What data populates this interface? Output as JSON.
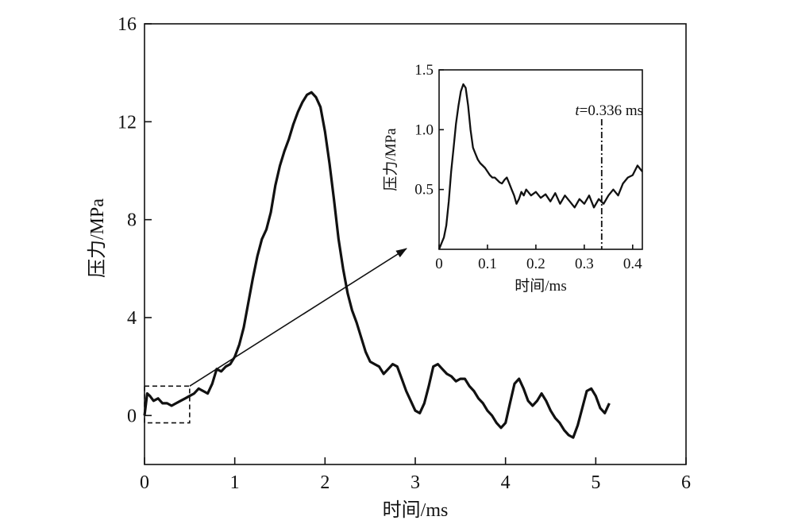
{
  "chart_data": [
    {
      "type": "line",
      "xlabel": "时间/ms",
      "ylabel": "压力/MPa",
      "xlim": [
        0,
        6
      ],
      "ylim": [
        -2,
        16
      ],
      "xticks": [
        "0",
        "1",
        "2",
        "3",
        "4",
        "5",
        "6"
      ],
      "yticks": [
        "0",
        "4",
        "8",
        "12",
        "16"
      ],
      "grid": false,
      "zoom_box": {
        "x": [
          0,
          0.5
        ],
        "y": [
          -0.3,
          1.2
        ]
      },
      "series": [
        {
          "x": [
            0,
            0.03,
            0.06,
            0.1,
            0.15,
            0.2,
            0.25,
            0.3,
            0.35,
            0.4,
            0.45,
            0.5,
            0.55,
            0.6,
            0.65,
            0.7,
            0.75,
            0.8,
            0.85,
            0.9,
            0.95,
            1.0,
            1.05,
            1.1,
            1.15,
            1.2,
            1.25,
            1.3,
            1.35,
            1.4,
            1.45,
            1.5,
            1.55,
            1.6,
            1.65,
            1.7,
            1.75,
            1.8,
            1.85,
            1.9,
            1.95,
            2.0,
            2.05,
            2.1,
            2.15,
            2.2,
            2.25,
            2.3,
            2.35,
            2.4,
            2.45,
            2.5,
            2.55,
            2.6,
            2.65,
            2.7,
            2.75,
            2.8,
            2.85,
            2.9,
            2.95,
            3.0,
            3.05,
            3.1,
            3.15,
            3.2,
            3.25,
            3.3,
            3.35,
            3.4,
            3.45,
            3.5,
            3.55,
            3.6,
            3.65,
            3.7,
            3.75,
            3.8,
            3.85,
            3.9,
            3.95,
            4.0,
            4.05,
            4.1,
            4.15,
            4.2,
            4.25,
            4.3,
            4.35,
            4.4,
            4.45,
            4.5,
            4.55,
            4.6,
            4.65,
            4.7,
            4.75,
            4.8,
            4.85,
            4.9,
            4.95,
            5.0,
            5.05,
            5.1,
            5.15
          ],
          "y": [
            0.0,
            0.9,
            0.8,
            0.6,
            0.7,
            0.5,
            0.5,
            0.4,
            0.5,
            0.6,
            0.7,
            0.8,
            0.9,
            1.1,
            1.0,
            0.9,
            1.3,
            1.9,
            1.8,
            2.0,
            2.1,
            2.4,
            2.9,
            3.6,
            4.6,
            5.6,
            6.5,
            7.2,
            7.6,
            8.3,
            9.4,
            10.2,
            10.8,
            11.3,
            11.9,
            12.4,
            12.8,
            13.1,
            13.2,
            13.0,
            12.6,
            11.6,
            10.3,
            8.8,
            7.2,
            6.0,
            5.0,
            4.3,
            3.8,
            3.2,
            2.6,
            2.2,
            2.1,
            2.0,
            1.7,
            1.9,
            2.1,
            2.0,
            1.5,
            1.0,
            0.6,
            0.2,
            0.1,
            0.5,
            1.2,
            2.0,
            2.1,
            1.9,
            1.7,
            1.6,
            1.4,
            1.5,
            1.5,
            1.2,
            1.0,
            0.7,
            0.5,
            0.2,
            0.0,
            -0.3,
            -0.5,
            -0.3,
            0.5,
            1.3,
            1.5,
            1.1,
            0.6,
            0.4,
            0.6,
            0.9,
            0.6,
            0.2,
            -0.1,
            -0.3,
            -0.6,
            -0.8,
            -0.9,
            -0.4,
            0.3,
            1.0,
            1.1,
            0.8,
            0.3,
            0.1,
            0.5
          ]
        }
      ]
    },
    {
      "type": "line",
      "xlabel": "时间/ms",
      "ylabel": "压力/MPa",
      "xlim": [
        0,
        0.42
      ],
      "ylim": [
        0,
        1.5
      ],
      "xticks": [
        "0",
        "0.1",
        "0.2",
        "0.3",
        "0.4"
      ],
      "yticks": [
        "0.5",
        "1.0",
        "1.5"
      ],
      "grid": false,
      "annotation": {
        "x": 0.336,
        "text_italic": "t",
        "text": "=0.336 ms"
      },
      "series": [
        {
          "x": [
            0,
            0.005,
            0.01,
            0.015,
            0.02,
            0.025,
            0.03,
            0.035,
            0.04,
            0.045,
            0.05,
            0.055,
            0.06,
            0.065,
            0.07,
            0.075,
            0.08,
            0.085,
            0.09,
            0.095,
            0.1,
            0.105,
            0.11,
            0.115,
            0.12,
            0.125,
            0.13,
            0.135,
            0.14,
            0.145,
            0.15,
            0.155,
            0.16,
            0.165,
            0.17,
            0.175,
            0.18,
            0.19,
            0.2,
            0.21,
            0.22,
            0.23,
            0.24,
            0.25,
            0.26,
            0.27,
            0.28,
            0.29,
            0.3,
            0.31,
            0.32,
            0.33,
            0.34,
            0.35,
            0.36,
            0.37,
            0.38,
            0.39,
            0.4,
            0.41,
            0.42
          ],
          "y": [
            0.0,
            0.05,
            0.1,
            0.2,
            0.4,
            0.65,
            0.85,
            1.05,
            1.2,
            1.32,
            1.38,
            1.35,
            1.2,
            1.0,
            0.85,
            0.8,
            0.75,
            0.72,
            0.7,
            0.68,
            0.65,
            0.62,
            0.6,
            0.6,
            0.58,
            0.56,
            0.55,
            0.58,
            0.6,
            0.55,
            0.5,
            0.45,
            0.38,
            0.42,
            0.48,
            0.45,
            0.5,
            0.45,
            0.48,
            0.43,
            0.46,
            0.4,
            0.47,
            0.38,
            0.45,
            0.4,
            0.35,
            0.42,
            0.38,
            0.45,
            0.35,
            0.42,
            0.38,
            0.45,
            0.5,
            0.45,
            0.55,
            0.6,
            0.62,
            0.7,
            0.65
          ]
        }
      ]
    }
  ]
}
